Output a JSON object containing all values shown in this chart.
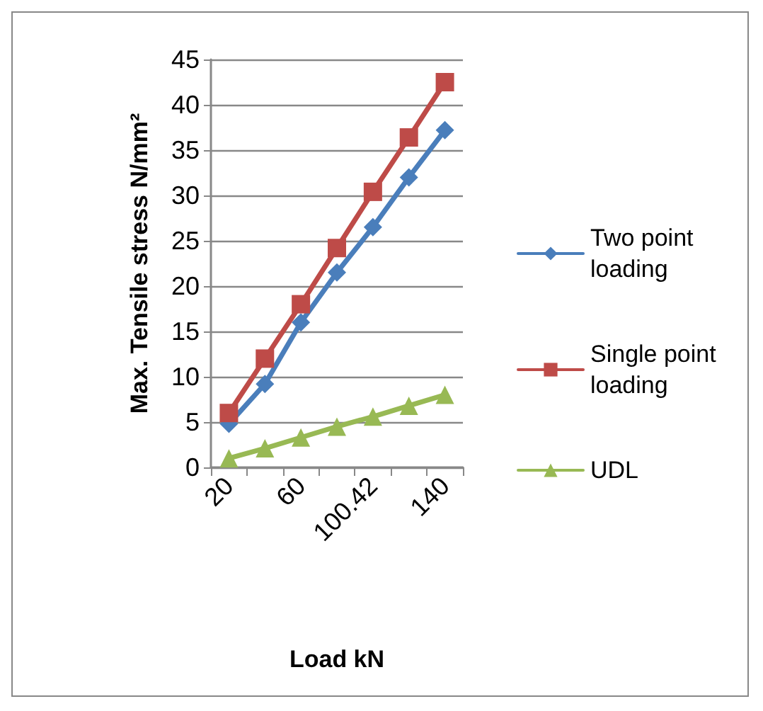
{
  "chart_data": {
    "type": "line",
    "xlabel": "Load kN",
    "ylabel": "Max. Tensile stress N/mm²",
    "categories": [
      "20",
      null,
      "60",
      null,
      "100.42",
      null,
      "140"
    ],
    "series": [
      {
        "name": "Two point loading",
        "color": "#4a7ebb",
        "marker": "diamond",
        "values": [
          4.8,
          9.2,
          16,
          21.5,
          26.5,
          32,
          37.2
        ]
      },
      {
        "name": "Single point loading",
        "color": "#be4b48",
        "marker": "square",
        "values": [
          6,
          12,
          18,
          24.2,
          30.4,
          36.4,
          42.5
        ]
      },
      {
        "name": "UDL",
        "color": "#98b954",
        "marker": "triangle",
        "values": [
          1,
          2.1,
          3.3,
          4.5,
          5.6,
          6.8,
          8
        ]
      }
    ],
    "ylim": [
      0,
      45
    ],
    "yticks": [
      0,
      5,
      10,
      15,
      20,
      25,
      30,
      35,
      40,
      45
    ],
    "grid": "y",
    "legend": "right",
    "line_style": "solid"
  }
}
